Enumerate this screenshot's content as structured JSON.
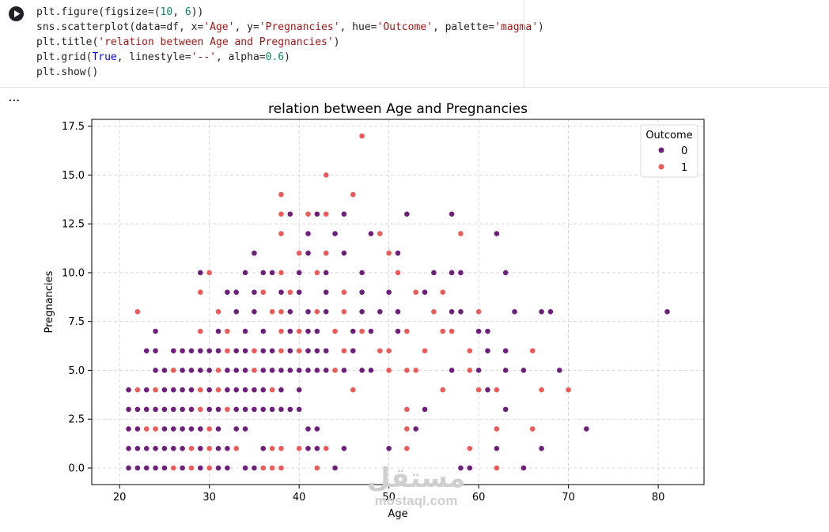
{
  "notebook": {
    "run_button_label": "Run cell",
    "output_menu_label": "...",
    "code": [
      [
        {
          "t": "plt.figure(figsize=("
        },
        {
          "t": "10",
          "c": "num"
        },
        {
          "t": ", "
        },
        {
          "t": "6",
          "c": "num"
        },
        {
          "t": "))"
        }
      ],
      [
        {
          "t": "sns.scatterplot(data=df, x="
        },
        {
          "t": "'Age'",
          "c": "str"
        },
        {
          "t": ", y="
        },
        {
          "t": "'Pregnancies'",
          "c": "str"
        },
        {
          "t": ", hue="
        },
        {
          "t": "'Outcome'",
          "c": "str"
        },
        {
          "t": ", palette="
        },
        {
          "t": "'magma'",
          "c": "str"
        },
        {
          "t": ")"
        }
      ],
      [
        {
          "t": "plt.title("
        },
        {
          "t": "'relation between Age and Pregnancies'",
          "c": "str"
        },
        {
          "t": ")"
        }
      ],
      [
        {
          "t": "plt.grid("
        },
        {
          "t": "True",
          "c": "kw"
        },
        {
          "t": ", linestyle="
        },
        {
          "t": "'--'",
          "c": "str"
        },
        {
          "t": ", alpha="
        },
        {
          "t": "0.6",
          "c": "num"
        },
        {
          "t": ")"
        }
      ],
      [
        {
          "t": "plt.show()"
        }
      ]
    ]
  },
  "watermark": {
    "arabic": "مستقل",
    "latin": "mostaql.com"
  },
  "chart_data": {
    "type": "scatter",
    "title": "relation between Age and Pregnancies",
    "xlabel": "Age",
    "ylabel": "Pregnancies",
    "xlim": [
      16.9,
      85.1
    ],
    "ylim": [
      -0.85,
      17.85
    ],
    "xticks": [
      20,
      30,
      40,
      50,
      60,
      70,
      80
    ],
    "xtick_labels": [
      "20",
      "30",
      "40",
      "50",
      "60",
      "70",
      "80"
    ],
    "yticks": [
      0,
      2.5,
      5,
      7.5,
      10,
      12.5,
      15,
      17.5
    ],
    "ytick_labels": [
      "0.0",
      "2.5",
      "5.0",
      "7.5",
      "10.0",
      "12.5",
      "15.0",
      "17.5"
    ],
    "grid": true,
    "legend": {
      "title": "Outcome",
      "position": "top-right"
    },
    "series": [
      {
        "name": "0",
        "color": "#6e1e7b",
        "points": [
          [
            21,
            0
          ],
          [
            22,
            0
          ],
          [
            23,
            0
          ],
          [
            24,
            0
          ],
          [
            25,
            0
          ],
          [
            26,
            0
          ],
          [
            27,
            0
          ],
          [
            28,
            0
          ],
          [
            29,
            0
          ],
          [
            30,
            0
          ],
          [
            31,
            0
          ],
          [
            32,
            0
          ],
          [
            34,
            0
          ],
          [
            35,
            0
          ],
          [
            44,
            0
          ],
          [
            58,
            0
          ],
          [
            59,
            0
          ],
          [
            65,
            0
          ],
          [
            21,
            1
          ],
          [
            22,
            1
          ],
          [
            23,
            1
          ],
          [
            24,
            1
          ],
          [
            25,
            1
          ],
          [
            26,
            1
          ],
          [
            27,
            1
          ],
          [
            28,
            1
          ],
          [
            29,
            1
          ],
          [
            30,
            1
          ],
          [
            31,
            1
          ],
          [
            32,
            1
          ],
          [
            33,
            1
          ],
          [
            36,
            1
          ],
          [
            41,
            1
          ],
          [
            42,
            1
          ],
          [
            45,
            1
          ],
          [
            50,
            1
          ],
          [
            59,
            1
          ],
          [
            62,
            1
          ],
          [
            67,
            1
          ],
          [
            21,
            2
          ],
          [
            22,
            2
          ],
          [
            23,
            2
          ],
          [
            24,
            2
          ],
          [
            25,
            2
          ],
          [
            26,
            2
          ],
          [
            27,
            2
          ],
          [
            28,
            2
          ],
          [
            29,
            2
          ],
          [
            31,
            2
          ],
          [
            33,
            2
          ],
          [
            34,
            2
          ],
          [
            41,
            2
          ],
          [
            42,
            2
          ],
          [
            52,
            2
          ],
          [
            53,
            2
          ],
          [
            72,
            2
          ],
          [
            21,
            3
          ],
          [
            22,
            3
          ],
          [
            23,
            3
          ],
          [
            24,
            3
          ],
          [
            25,
            3
          ],
          [
            26,
            3
          ],
          [
            27,
            3
          ],
          [
            28,
            3
          ],
          [
            30,
            3
          ],
          [
            31,
            3
          ],
          [
            33,
            3
          ],
          [
            34,
            3
          ],
          [
            35,
            3
          ],
          [
            36,
            3
          ],
          [
            37,
            3
          ],
          [
            38,
            3
          ],
          [
            39,
            3
          ],
          [
            40,
            3
          ],
          [
            54,
            3
          ],
          [
            63,
            3
          ],
          [
            21,
            4
          ],
          [
            23,
            4
          ],
          [
            24,
            4
          ],
          [
            25,
            4
          ],
          [
            26,
            4
          ],
          [
            27,
            4
          ],
          [
            28,
            4
          ],
          [
            29,
            4
          ],
          [
            30,
            4
          ],
          [
            32,
            4
          ],
          [
            33,
            4
          ],
          [
            34,
            4
          ],
          [
            35,
            4
          ],
          [
            36,
            4
          ],
          [
            38,
            4
          ],
          [
            40,
            4
          ],
          [
            61,
            4
          ],
          [
            24,
            5
          ],
          [
            25,
            5
          ],
          [
            27,
            5
          ],
          [
            28,
            5
          ],
          [
            29,
            5
          ],
          [
            30,
            5
          ],
          [
            32,
            5
          ],
          [
            33,
            5
          ],
          [
            34,
            5
          ],
          [
            35,
            5
          ],
          [
            36,
            5
          ],
          [
            37,
            5
          ],
          [
            38,
            5
          ],
          [
            39,
            5
          ],
          [
            40,
            5
          ],
          [
            41,
            5
          ],
          [
            42,
            5
          ],
          [
            43,
            5
          ],
          [
            45,
            5
          ],
          [
            47,
            5
          ],
          [
            48,
            5
          ],
          [
            57,
            5
          ],
          [
            60,
            5
          ],
          [
            63,
            5
          ],
          [
            65,
            5
          ],
          [
            69,
            5
          ],
          [
            23,
            6
          ],
          [
            24,
            6
          ],
          [
            26,
            6
          ],
          [
            27,
            6
          ],
          [
            28,
            6
          ],
          [
            29,
            6
          ],
          [
            30,
            6
          ],
          [
            31,
            6
          ],
          [
            33,
            6
          ],
          [
            34,
            6
          ],
          [
            35,
            6
          ],
          [
            36,
            6
          ],
          [
            37,
            6
          ],
          [
            39,
            6
          ],
          [
            41,
            6
          ],
          [
            42,
            6
          ],
          [
            43,
            6
          ],
          [
            46,
            6
          ],
          [
            61,
            6
          ],
          [
            63,
            6
          ],
          [
            24,
            7
          ],
          [
            29,
            7
          ],
          [
            31,
            7
          ],
          [
            34,
            7
          ],
          [
            36,
            7
          ],
          [
            39,
            7
          ],
          [
            41,
            7
          ],
          [
            42,
            7
          ],
          [
            46,
            7
          ],
          [
            48,
            7
          ],
          [
            51,
            7
          ],
          [
            60,
            7
          ],
          [
            61,
            7
          ],
          [
            31,
            8
          ],
          [
            33,
            8
          ],
          [
            35,
            8
          ],
          [
            37,
            8
          ],
          [
            39,
            8
          ],
          [
            41,
            8
          ],
          [
            43,
            8
          ],
          [
            45,
            8
          ],
          [
            47,
            8
          ],
          [
            49,
            8
          ],
          [
            51,
            8
          ],
          [
            57,
            8
          ],
          [
            58,
            8
          ],
          [
            64,
            8
          ],
          [
            67,
            8
          ],
          [
            68,
            8
          ],
          [
            81,
            8
          ],
          [
            32,
            9
          ],
          [
            33,
            9
          ],
          [
            35,
            9
          ],
          [
            38,
            9
          ],
          [
            40,
            9
          ],
          [
            43,
            9
          ],
          [
            47,
            9
          ],
          [
            50,
            9
          ],
          [
            54,
            9
          ],
          [
            29,
            10
          ],
          [
            34,
            10
          ],
          [
            36,
            10
          ],
          [
            37,
            10
          ],
          [
            40,
            10
          ],
          [
            43,
            10
          ],
          [
            47,
            10
          ],
          [
            55,
            10
          ],
          [
            57,
            10
          ],
          [
            58,
            10
          ],
          [
            63,
            10
          ],
          [
            35,
            11
          ],
          [
            41,
            11
          ],
          [
            45,
            11
          ],
          [
            51,
            11
          ],
          [
            38,
            12
          ],
          [
            41,
            12
          ],
          [
            44,
            12
          ],
          [
            48,
            12
          ],
          [
            62,
            12
          ],
          [
            39,
            13
          ],
          [
            42,
            13
          ],
          [
            45,
            13
          ],
          [
            52,
            13
          ],
          [
            57,
            13
          ]
        ]
      },
      {
        "name": "1",
        "color": "#ed5a57",
        "points": [
          [
            26,
            0
          ],
          [
            28,
            0
          ],
          [
            30,
            0
          ],
          [
            36,
            0
          ],
          [
            37,
            0
          ],
          [
            38,
            0
          ],
          [
            42,
            0
          ],
          [
            62,
            0
          ],
          [
            28,
            1
          ],
          [
            30,
            1
          ],
          [
            33,
            1
          ],
          [
            37,
            1
          ],
          [
            38,
            1
          ],
          [
            40,
            1
          ],
          [
            43,
            1
          ],
          [
            52,
            1
          ],
          [
            59,
            1
          ],
          [
            23,
            2
          ],
          [
            24,
            2
          ],
          [
            30,
            2
          ],
          [
            52,
            2
          ],
          [
            62,
            2
          ],
          [
            66,
            2
          ],
          [
            29,
            3
          ],
          [
            32,
            3
          ],
          [
            52,
            3
          ],
          [
            22,
            4
          ],
          [
            24,
            4
          ],
          [
            29,
            4
          ],
          [
            31,
            4
          ],
          [
            37,
            4
          ],
          [
            46,
            4
          ],
          [
            56,
            4
          ],
          [
            60,
            4
          ],
          [
            62,
            4
          ],
          [
            67,
            4
          ],
          [
            70,
            4
          ],
          [
            26,
            5
          ],
          [
            31,
            5
          ],
          [
            35,
            5
          ],
          [
            44,
            5
          ],
          [
            50,
            5
          ],
          [
            52,
            5
          ],
          [
            53,
            5
          ],
          [
            59,
            5
          ],
          [
            22,
            8
          ],
          [
            31,
            8
          ],
          [
            32,
            6
          ],
          [
            35,
            6
          ],
          [
            38,
            6
          ],
          [
            40,
            6
          ],
          [
            45,
            6
          ],
          [
            49,
            6
          ],
          [
            50,
            6
          ],
          [
            54,
            6
          ],
          [
            59,
            6
          ],
          [
            66,
            6
          ],
          [
            29,
            7
          ],
          [
            32,
            7
          ],
          [
            38,
            7
          ],
          [
            40,
            7
          ],
          [
            44,
            7
          ],
          [
            47,
            7
          ],
          [
            52,
            7
          ],
          [
            56,
            7
          ],
          [
            57,
            7
          ],
          [
            37,
            8
          ],
          [
            38,
            8
          ],
          [
            42,
            8
          ],
          [
            45,
            8
          ],
          [
            55,
            8
          ],
          [
            60,
            8
          ],
          [
            29,
            9
          ],
          [
            36,
            9
          ],
          [
            39,
            9
          ],
          [
            45,
            9
          ],
          [
            53,
            9
          ],
          [
            56,
            9
          ],
          [
            30,
            10
          ],
          [
            38,
            10
          ],
          [
            42,
            10
          ],
          [
            51,
            10
          ],
          [
            40,
            11
          ],
          [
            43,
            11
          ],
          [
            50,
            11
          ],
          [
            38,
            12
          ],
          [
            49,
            12
          ],
          [
            58,
            12
          ],
          [
            38,
            13
          ],
          [
            41,
            13
          ],
          [
            43,
            13
          ],
          [
            38,
            14
          ],
          [
            46,
            14
          ],
          [
            43,
            15
          ],
          [
            47,
            17
          ]
        ]
      }
    ]
  }
}
